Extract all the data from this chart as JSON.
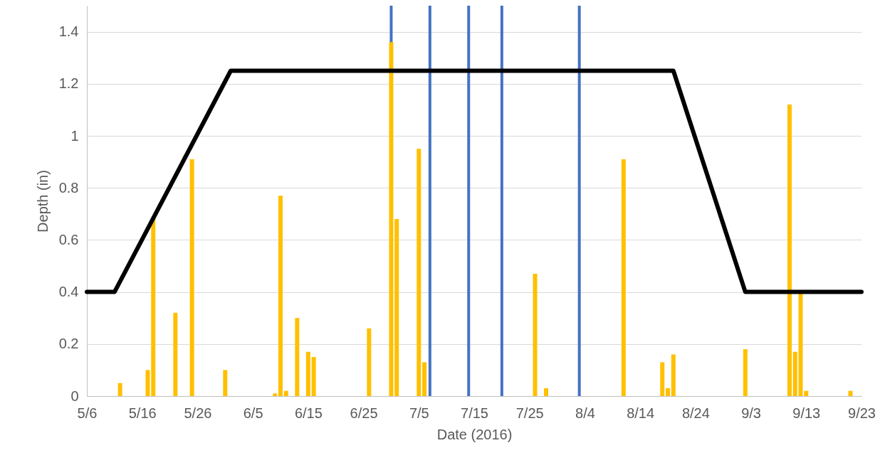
{
  "chart_data": {
    "type": "bar",
    "xlabel": "Date (2016)",
    "ylabel": "Depth (in)",
    "xlim": [
      "2016-05-06",
      "2016-09-23"
    ],
    "xticks": [
      {
        "value": "2016-05-06",
        "label": "5/6"
      },
      {
        "value": "2016-05-16",
        "label": "5/16"
      },
      {
        "value": "2016-05-26",
        "label": "5/26"
      },
      {
        "value": "2016-06-05",
        "label": "6/5"
      },
      {
        "value": "2016-06-15",
        "label": "6/15"
      },
      {
        "value": "2016-06-25",
        "label": "6/25"
      },
      {
        "value": "2016-07-05",
        "label": "7/5"
      },
      {
        "value": "2016-07-15",
        "label": "7/15"
      },
      {
        "value": "2016-07-25",
        "label": "7/25"
      },
      {
        "value": "2016-08-04",
        "label": "8/4"
      },
      {
        "value": "2016-08-14",
        "label": "8/14"
      },
      {
        "value": "2016-08-24",
        "label": "8/24"
      },
      {
        "value": "2016-09-03",
        "label": "9/3"
      },
      {
        "value": "2016-09-13",
        "label": "9/13"
      },
      {
        "value": "2016-09-23",
        "label": "9/23"
      }
    ],
    "ylim": [
      0,
      1.5
    ],
    "yticks": [
      0,
      0.2,
      0.4,
      0.6,
      0.8,
      1,
      1.2,
      1.4
    ],
    "grid": "y",
    "series": [
      {
        "color": "#ffc000",
        "x": [
          "2016-05-12",
          "2016-05-17",
          "2016-05-18",
          "2016-05-19",
          "2016-05-22",
          "2016-05-25",
          "2016-05-26",
          "2016-05-31",
          "2016-06-09",
          "2016-06-10",
          "2016-06-11",
          "2016-06-13",
          "2016-06-15",
          "2016-06-16",
          "2016-06-26",
          "2016-06-30",
          "2016-07-01",
          "2016-07-05",
          "2016-07-06",
          "2016-07-26",
          "2016-07-28",
          "2016-08-11",
          "2016-08-18",
          "2016-08-19",
          "2016-08-20",
          "2016-09-02",
          "2016-09-10",
          "2016-09-11",
          "2016-09-12",
          "2016-09-13",
          "2016-09-21"
        ],
        "values": [
          0.05,
          0.1,
          0.68,
          null,
          0.32,
          0.91,
          null,
          0.1,
          0.01,
          0.77,
          0.02,
          0.3,
          0.17,
          0.15,
          0.26,
          1.36,
          0.68,
          0.95,
          0.13,
          0.47,
          0.03,
          0.91,
          0.13,
          0.03,
          0.16,
          0.18,
          1.12,
          0.17,
          0.4,
          0.02,
          0.02
        ]
      },
      {
        "type": "line",
        "color": "#000000",
        "x": [
          "2016-05-06",
          "2016-05-11",
          "2016-06-01",
          "2016-08-20",
          "2016-09-02",
          "2016-09-23"
        ],
        "values": [
          0.4,
          0.4,
          1.25,
          1.25,
          0.4,
          0.4
        ]
      }
    ],
    "ref_lines": [
      {
        "axis": "x",
        "value": "2016-06-30",
        "color": "#4472c4"
      },
      {
        "axis": "x",
        "value": "2016-07-07",
        "color": "#4472c4"
      },
      {
        "axis": "x",
        "value": "2016-07-14",
        "color": "#4472c4"
      },
      {
        "axis": "x",
        "value": "2016-07-20",
        "color": "#4472c4"
      },
      {
        "axis": "x",
        "value": "2016-08-03",
        "color": "#4472c4"
      }
    ]
  }
}
